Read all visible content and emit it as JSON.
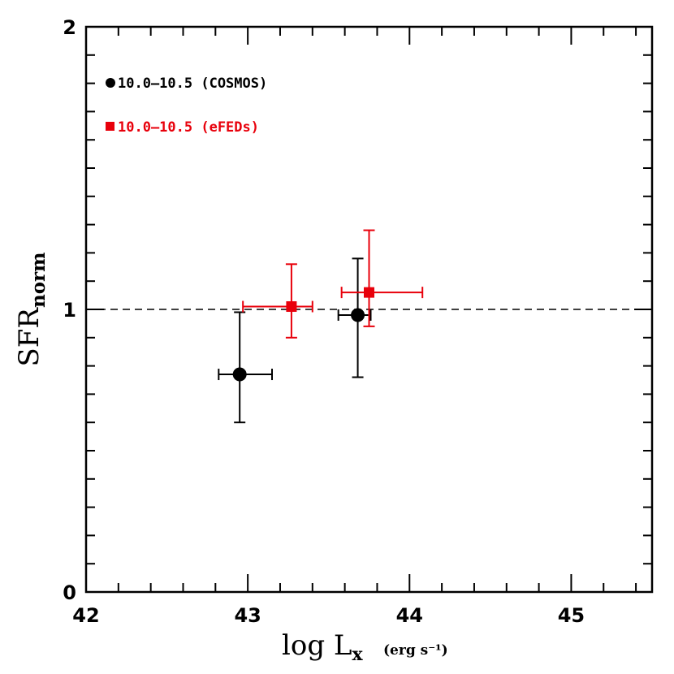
{
  "chart_data": {
    "type": "scatter",
    "title": "",
    "xlabel_main": "log L",
    "xlabel_sub": "x",
    "xlabel_units": "(erg s⁻¹)",
    "ylabel_main": "SFR",
    "ylabel_sub": "norm",
    "xlim": [
      42,
      45.5
    ],
    "ylim": [
      0,
      2
    ],
    "x_ticks": [
      42,
      43,
      44,
      45
    ],
    "x_tick_labels": [
      "42",
      "43",
      "44",
      "45"
    ],
    "y_ticks": [
      0,
      1,
      2
    ],
    "y_tick_labels": [
      "0",
      "1",
      "2"
    ],
    "reference_line": {
      "y": 1,
      "style": "dashed",
      "color": "#000000"
    },
    "series": [
      {
        "name": "10.0–10.5 (COSMOS)",
        "color": "#000000",
        "marker": "circle",
        "points": [
          {
            "x": 42.95,
            "y": 0.77,
            "x_lo": 42.82,
            "x_hi": 43.15,
            "y_lo": 0.6,
            "y_hi": 0.99
          },
          {
            "x": 43.68,
            "y": 0.98,
            "x_lo": 43.56,
            "x_hi": 43.76,
            "y_lo": 0.76,
            "y_hi": 1.18
          }
        ]
      },
      {
        "name": "10.0–10.5 (eFEDs)",
        "color": "#e8000b",
        "marker": "square",
        "points": [
          {
            "x": 43.27,
            "y": 1.01,
            "x_lo": 42.97,
            "x_hi": 43.4,
            "y_lo": 0.9,
            "y_hi": 1.16
          },
          {
            "x": 43.75,
            "y": 1.06,
            "x_lo": 43.58,
            "x_hi": 44.08,
            "y_lo": 0.94,
            "y_hi": 1.28
          }
        ]
      }
    ],
    "legend": {
      "position": "top-left"
    }
  }
}
